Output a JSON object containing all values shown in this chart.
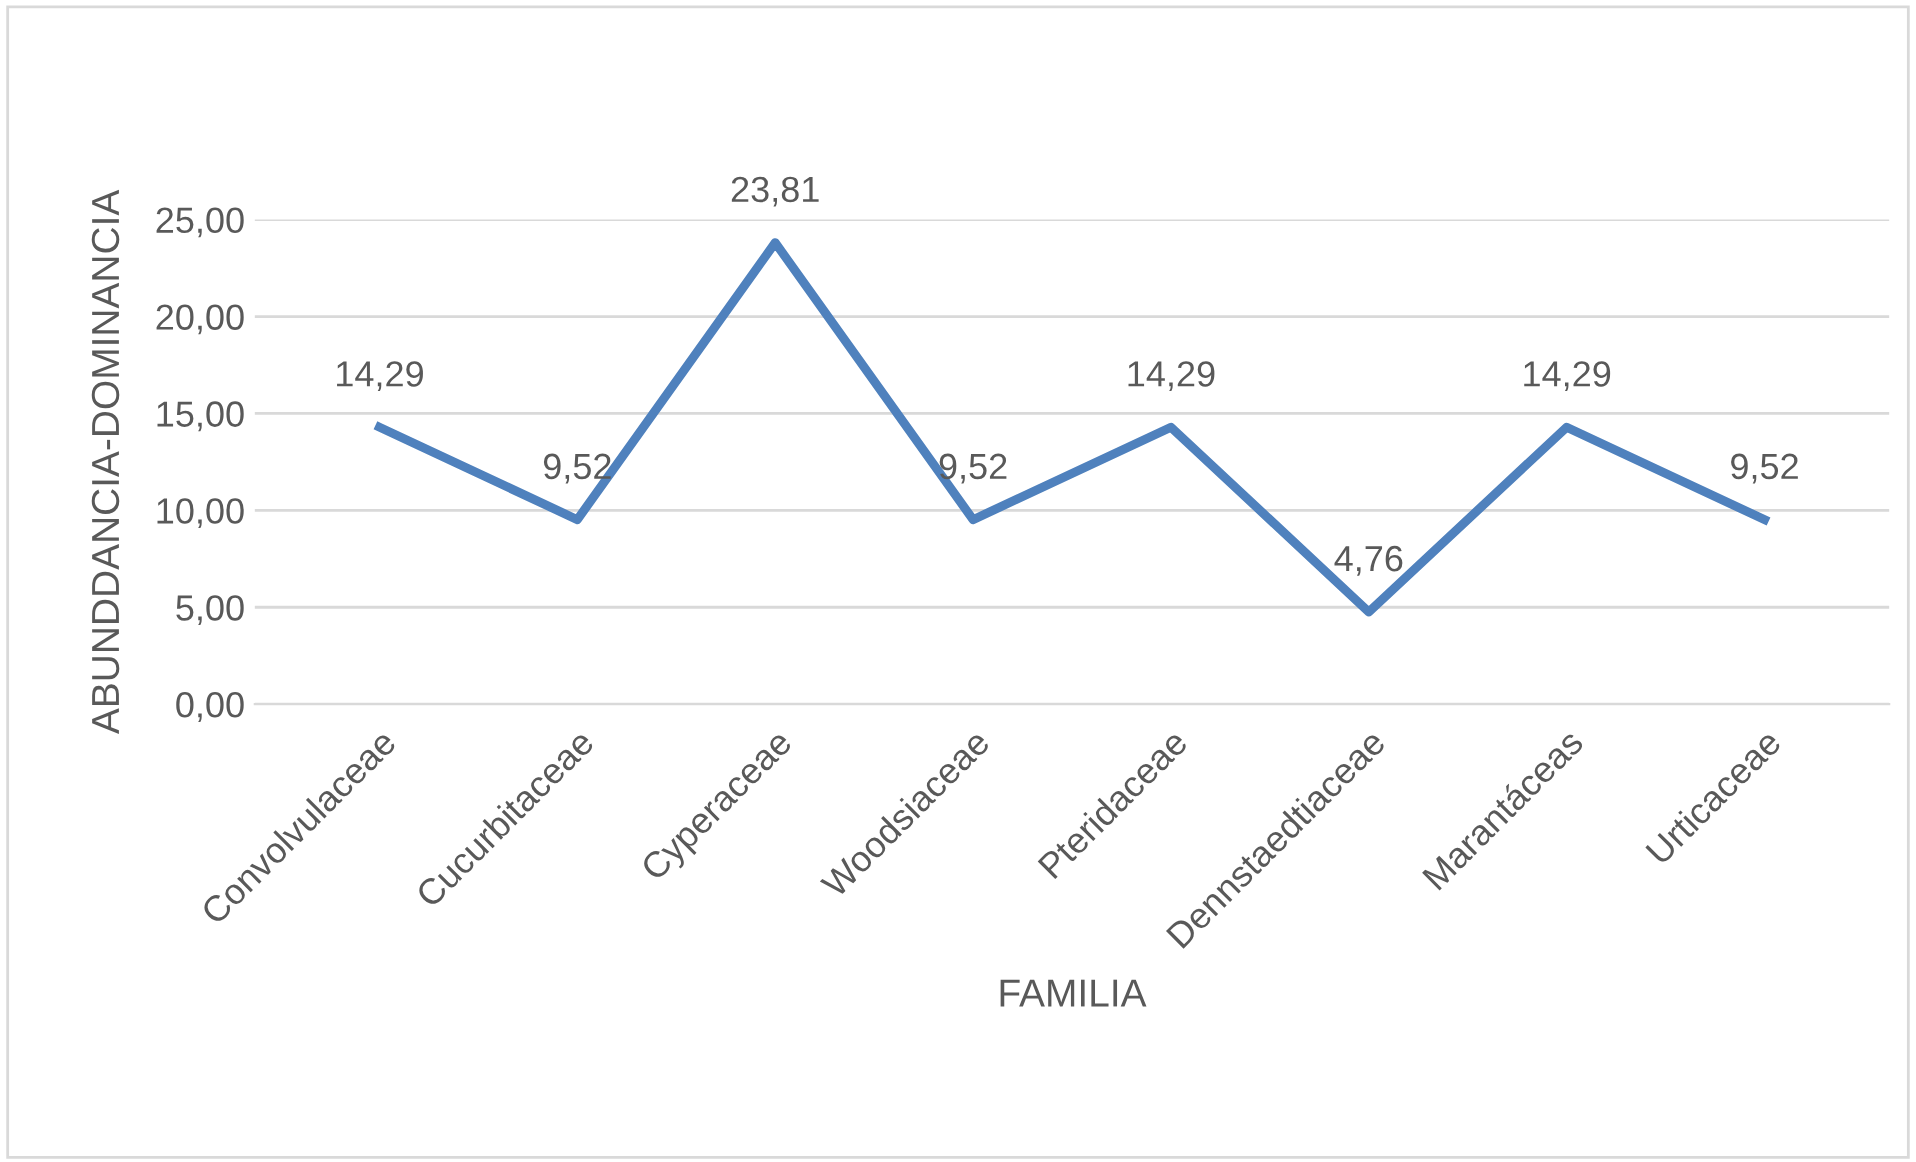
{
  "chart_data": {
    "type": "line",
    "xlabel": "FAMILIA",
    "ylabel": "ABUNDDANCIA-DOMINANCIA",
    "categories": [
      "Convolvulaceae",
      "Cucurbitaceae",
      "Cyperaceae",
      "Woodsiaceae",
      "Pteridaceae",
      "Dennstaedtiaceae",
      "Marantáceas",
      "Urticaceae"
    ],
    "series": [
      {
        "color": "#4f81bd",
        "values": [
          14.29,
          9.52,
          23.81,
          9.52,
          14.29,
          4.76,
          14.29,
          9.52
        ],
        "value_labels": [
          "14,29",
          "9,52",
          "23,81",
          "9,52",
          "14,29",
          "4,76",
          "14,29",
          "9,52"
        ]
      }
    ],
    "ylim": [
      0,
      25
    ],
    "yticks": [
      {
        "value": 0,
        "label": "0,00"
      },
      {
        "value": 5,
        "label": "5,00"
      },
      {
        "value": 10,
        "label": "10,00"
      },
      {
        "value": 15,
        "label": "15,00"
      },
      {
        "value": 20,
        "label": "20,00"
      },
      {
        "value": 25,
        "label": "25,00"
      }
    ],
    "grid": "y",
    "legend": false,
    "marker": "none",
    "line_style": "solid"
  }
}
